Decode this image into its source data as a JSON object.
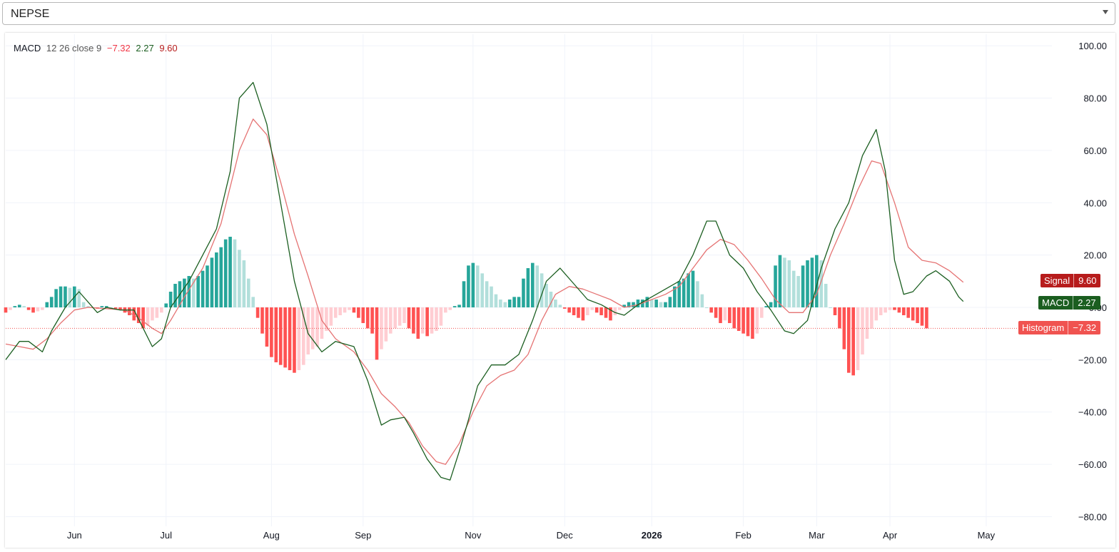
{
  "symbol_selector": {
    "value": "NEPSE"
  },
  "legend": {
    "name": "MACD",
    "params": "12 26 close 9",
    "histogram_value": "−7.32",
    "macd_value": "2.27",
    "signal_value": "9.60"
  },
  "price_tags": {
    "signal": {
      "label": "Signal",
      "value": "9.60",
      "color": "#b71c1c"
    },
    "macd": {
      "label": "MACD",
      "value": "2.27",
      "color": "#1b5e20"
    },
    "histogram": {
      "label": "Histogram",
      "value": "−7.32",
      "color": "#f05350"
    }
  },
  "colors": {
    "macd_line": "#1b5e20",
    "signal_line": "#e57373",
    "hist_pos_rising": "#26a69a",
    "hist_pos_falling": "#b2dfdb",
    "hist_neg_falling": "#ff5252",
    "hist_neg_rising": "#ffcdd2"
  },
  "chart_data": {
    "type": "line",
    "title": "",
    "xlabel": "",
    "ylabel": "",
    "ylim": [
      -85,
      100
    ],
    "y_ticks": [
      "100.00",
      "80.00",
      "60.00",
      "40.00",
      "20.00",
      "0.00",
      "−20.00",
      "−40.00",
      "−60.00",
      "−80.00"
    ],
    "x_ticks": [
      {
        "label": "Jun",
        "bold": false
      },
      {
        "label": "Jul",
        "bold": false
      },
      {
        "label": "Aug",
        "bold": false
      },
      {
        "label": "Sep",
        "bold": false
      },
      {
        "label": "Nov",
        "bold": false
      },
      {
        "label": "Dec",
        "bold": false
      },
      {
        "label": "2026",
        "bold": true
      },
      {
        "label": "Feb",
        "bold": false
      },
      {
        "label": "Mar",
        "bold": false
      },
      {
        "label": "Apr",
        "bold": false
      },
      {
        "label": "May",
        "bold": false
      }
    ],
    "grid": true,
    "legend": "top-left",
    "x_range": [
      0,
      212
    ],
    "x_tick_index": [
      15,
      35,
      58,
      78,
      102,
      122,
      141,
      161,
      177,
      193,
      214
    ],
    "series": [
      {
        "name": "MACD",
        "style": "line",
        "points": [
          [
            0,
            -20
          ],
          [
            3,
            -13
          ],
          [
            5,
            -13
          ],
          [
            8,
            -17
          ],
          [
            10,
            -9
          ],
          [
            13,
            0
          ],
          [
            16,
            6
          ],
          [
            18,
            2
          ],
          [
            20,
            -2
          ],
          [
            22,
            0
          ],
          [
            25,
            -1
          ],
          [
            28,
            -1
          ],
          [
            30,
            -8
          ],
          [
            32,
            -15
          ],
          [
            34,
            -12
          ],
          [
            36,
            0
          ],
          [
            38,
            5
          ],
          [
            40,
            10
          ],
          [
            43,
            20
          ],
          [
            46,
            30
          ],
          [
            49,
            52
          ],
          [
            51,
            80
          ],
          [
            54,
            86
          ],
          [
            57,
            70
          ],
          [
            60,
            40
          ],
          [
            63,
            10
          ],
          [
            66,
            -10
          ],
          [
            69,
            -17
          ],
          [
            72,
            -13
          ],
          [
            76,
            -15
          ],
          [
            79,
            -28
          ],
          [
            82,
            -45
          ],
          [
            84,
            -43
          ],
          [
            87,
            -42
          ],
          [
            89,
            -48
          ],
          [
            92,
            -58
          ],
          [
            95,
            -65
          ],
          [
            97,
            -66
          ],
          [
            99,
            -55
          ],
          [
            101,
            -43
          ],
          [
            103,
            -30
          ],
          [
            106,
            -22
          ],
          [
            109,
            -22
          ],
          [
            112,
            -18
          ],
          [
            115,
            -5
          ],
          [
            118,
            10
          ],
          [
            121,
            15
          ],
          [
            124,
            9
          ],
          [
            127,
            3
          ],
          [
            130,
            1
          ],
          [
            133,
            -2
          ],
          [
            135,
            -3
          ],
          [
            138,
            1
          ],
          [
            141,
            4
          ],
          [
            144,
            7
          ],
          [
            147,
            10
          ],
          [
            150,
            20
          ],
          [
            153,
            33
          ],
          [
            155,
            33
          ],
          [
            158,
            20
          ],
          [
            161,
            15
          ],
          [
            164,
            6
          ],
          [
            167,
            -1
          ],
          [
            170,
            -9
          ],
          [
            172,
            -10
          ],
          [
            175,
            -5
          ],
          [
            178,
            15
          ],
          [
            181,
            30
          ],
          [
            184,
            40
          ],
          [
            187,
            58
          ],
          [
            190,
            68
          ],
          [
            192,
            52
          ],
          [
            194,
            18
          ],
          [
            196,
            5
          ],
          [
            198,
            6
          ],
          [
            201,
            12
          ],
          [
            203,
            14
          ],
          [
            206,
            10
          ],
          [
            208,
            4
          ],
          [
            209,
            2.27
          ]
        ]
      },
      {
        "name": "Signal",
        "style": "line",
        "points": [
          [
            0,
            -14
          ],
          [
            3,
            -15
          ],
          [
            6,
            -16
          ],
          [
            9,
            -12
          ],
          [
            12,
            -6
          ],
          [
            15,
            -1
          ],
          [
            18,
            0
          ],
          [
            22,
            -0.5
          ],
          [
            26,
            -1
          ],
          [
            29,
            -4
          ],
          [
            32,
            -8
          ],
          [
            34,
            -10
          ],
          [
            36,
            -5
          ],
          [
            39,
            4
          ],
          [
            43,
            15
          ],
          [
            47,
            32
          ],
          [
            51,
            60
          ],
          [
            54,
            72
          ],
          [
            57,
            66
          ],
          [
            60,
            48
          ],
          [
            63,
            28
          ],
          [
            66,
            12
          ],
          [
            69,
            -5
          ],
          [
            72,
            -12
          ],
          [
            76,
            -17
          ],
          [
            79,
            -24
          ],
          [
            82,
            -33
          ],
          [
            85,
            -38
          ],
          [
            88,
            -44
          ],
          [
            91,
            -53
          ],
          [
            94,
            -59
          ],
          [
            96,
            -60
          ],
          [
            99,
            -52
          ],
          [
            102,
            -40
          ],
          [
            105,
            -30
          ],
          [
            108,
            -26
          ],
          [
            111,
            -24
          ],
          [
            114,
            -18
          ],
          [
            117,
            -5
          ],
          [
            120,
            5
          ],
          [
            123,
            8
          ],
          [
            126,
            7
          ],
          [
            129,
            5
          ],
          [
            132,
            3
          ],
          [
            135,
            0
          ],
          [
            138,
            1
          ],
          [
            141,
            3
          ],
          [
            144,
            5
          ],
          [
            147,
            8
          ],
          [
            150,
            15
          ],
          [
            153,
            22
          ],
          [
            156,
            26
          ],
          [
            159,
            24
          ],
          [
            162,
            18
          ],
          [
            165,
            11
          ],
          [
            168,
            3
          ],
          [
            171,
            -2
          ],
          [
            174,
            -2
          ],
          [
            177,
            5
          ],
          [
            180,
            20
          ],
          [
            183,
            32
          ],
          [
            186,
            45
          ],
          [
            189,
            56
          ],
          [
            191,
            55
          ],
          [
            194,
            40
          ],
          [
            197,
            23
          ],
          [
            200,
            18
          ],
          [
            203,
            17
          ],
          [
            206,
            14
          ],
          [
            209,
            9.6
          ]
        ]
      },
      {
        "name": "Histogram",
        "style": "bars",
        "values": [
          -2,
          -1,
          0.5,
          1,
          0.5,
          -1,
          -2,
          -1.5,
          -1,
          2,
          4,
          7,
          8,
          8,
          7.5,
          8,
          7,
          2,
          0.5,
          0,
          -0.5,
          0.5,
          0.5,
          0,
          -0.5,
          -1,
          -2,
          -3,
          -5,
          -6,
          -8,
          -7,
          -5,
          -4,
          -2,
          1.5,
          6,
          9,
          10,
          11,
          12,
          11,
          12,
          14,
          16,
          19,
          21,
          23,
          26,
          27,
          26,
          22,
          18,
          11,
          4,
          -4,
          -10,
          -15,
          -19,
          -21,
          -22,
          -23,
          -24,
          -25,
          -24,
          -22,
          -18,
          -16,
          -15,
          -12,
          -9,
          -7,
          -4,
          -3,
          -2,
          -1,
          -2,
          -4,
          -6,
          -8,
          -10,
          -20,
          -16,
          -13,
          -10,
          -8,
          -7,
          -6,
          -8,
          -10,
          -12,
          -10,
          -11,
          -10,
          -9,
          -7,
          -2,
          -1,
          0.5,
          1,
          10,
          16,
          17,
          16,
          13,
          10,
          8,
          5,
          3,
          2,
          3,
          4,
          4,
          11,
          15,
          17,
          16,
          13,
          9,
          6,
          3,
          1,
          -0.5,
          -2,
          -3,
          -4,
          -5,
          -3,
          -1,
          -2,
          -3,
          -4,
          -5,
          -3,
          -1,
          1,
          2,
          2,
          3,
          3,
          4,
          3,
          3,
          2,
          2,
          4,
          8,
          10,
          11,
          13,
          14,
          10,
          5,
          0,
          -2,
          -4,
          -6,
          -5,
          -6,
          -8,
          -9,
          -10,
          -11,
          -12,
          -10,
          -4,
          0.5,
          2,
          16,
          20,
          19,
          18,
          14,
          12,
          16,
          18,
          19,
          20,
          18,
          9,
          0,
          -3,
          -8,
          -16,
          -25,
          -26,
          -24,
          -18,
          -12,
          -8,
          -5,
          -3,
          -2,
          -1,
          -1,
          -2,
          -3,
          -4,
          -5,
          -6,
          -7,
          -8
        ]
      }
    ]
  }
}
